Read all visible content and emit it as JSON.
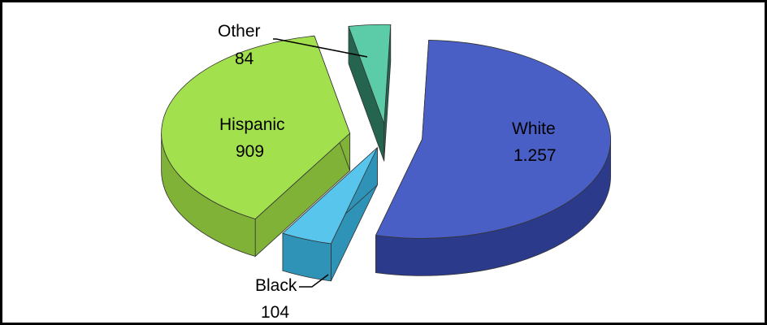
{
  "chart_data": {
    "type": "pie",
    "style": "3d-exploded",
    "categories": [
      "White",
      "Black",
      "Hispanic",
      "Other"
    ],
    "values": [
      1257,
      104,
      909,
      84
    ],
    "value_labels": [
      "1.257",
      "104",
      "909",
      "84"
    ],
    "colors": {
      "White": "#4a5fc6",
      "Black": "#58c6ec",
      "Hispanic": "#a3e04e",
      "Other": "#5ccba8"
    },
    "side_colors": {
      "White": "#2c3a8c",
      "Black": "#2f93b8",
      "Hispanic": "#7fb236",
      "Other": "#25654f"
    },
    "legend": "none"
  }
}
